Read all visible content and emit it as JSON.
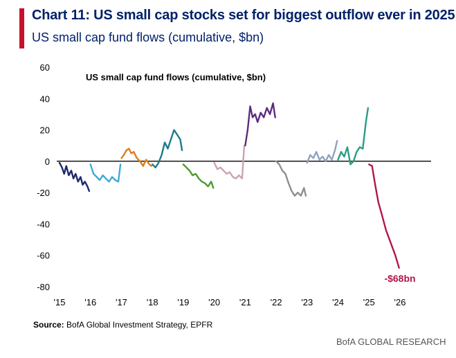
{
  "header": {
    "title": "Chart 11: US small cap stocks set for biggest outflow ever in 2025",
    "subtitle": "US small cap fund flows (cumulative, $bn)"
  },
  "footer": {
    "source_label": "Source:",
    "source_text": " BofA Global Investment Strategy, EPFR",
    "brand": "BofA GLOBAL RESEARCH"
  },
  "colors": {
    "accent": "#C8102E",
    "title": "#012169"
  },
  "chart_data": {
    "type": "line",
    "title": "US small cap fund flows (cumulative, $bn)",
    "xlabel": "",
    "ylabel": "",
    "xlim": [
      2015,
      2026.3
    ],
    "ylim": [
      -80,
      60
    ],
    "y_ticks": [
      60,
      40,
      20,
      0,
      -20,
      -40,
      -60,
      -80
    ],
    "x_ticks": [
      {
        "value": 2015,
        "label": "'15"
      },
      {
        "value": 2016,
        "label": "'16"
      },
      {
        "value": 2017,
        "label": "'17"
      },
      {
        "value": 2018,
        "label": "'18"
      },
      {
        "value": 2019,
        "label": "'19"
      },
      {
        "value": 2020,
        "label": "'20"
      },
      {
        "value": 2021,
        "label": "'21"
      },
      {
        "value": 2022,
        "label": "'22"
      },
      {
        "value": 2023,
        "label": "'23"
      },
      {
        "value": 2024,
        "label": "'24"
      },
      {
        "value": 2025,
        "label": "'25"
      },
      {
        "value": 2026,
        "label": "'26"
      }
    ],
    "grid": false,
    "zero_line": true,
    "annotation": {
      "text": "-$68bn",
      "x": 2026.0,
      "y": -77,
      "color": "#B0174A"
    },
    "series": [
      {
        "name": "2015",
        "color": "#1B2A6B",
        "x": [
          2015.0,
          2015.08,
          2015.15,
          2015.22,
          2015.3,
          2015.38,
          2015.45,
          2015.52,
          2015.6,
          2015.68,
          2015.75,
          2015.82,
          2015.9,
          2015.96
        ],
        "y": [
          -1,
          -4,
          -8,
          -3,
          -9,
          -6,
          -11,
          -8,
          -13,
          -10,
          -15,
          -13,
          -16,
          -19
        ]
      },
      {
        "name": "2016",
        "color": "#3FA9D8",
        "x": [
          2016.0,
          2016.1,
          2016.2,
          2016.3,
          2016.4,
          2016.5,
          2016.6,
          2016.7,
          2016.8,
          2016.9,
          2016.97
        ],
        "y": [
          -2,
          -8,
          -10,
          -12,
          -9,
          -11,
          -13,
          -10,
          -12,
          -13,
          -2
        ]
      },
      {
        "name": "2017",
        "color": "#E07B1A",
        "x": [
          2017.0,
          2017.08,
          2017.16,
          2017.24,
          2017.32,
          2017.4,
          2017.5,
          2017.6,
          2017.7,
          2017.8,
          2017.9,
          2017.97
        ],
        "y": [
          2,
          4,
          7,
          8,
          5,
          6,
          2,
          0,
          -3,
          1,
          -2,
          -3
        ]
      },
      {
        "name": "2018",
        "color": "#1E7A8C",
        "x": [
          2018.0,
          2018.1,
          2018.2,
          2018.3,
          2018.4,
          2018.5,
          2018.6,
          2018.7,
          2018.8,
          2018.9,
          2018.96
        ],
        "y": [
          -2,
          -4,
          -1,
          4,
          12,
          8,
          14,
          20,
          17,
          14,
          7
        ]
      },
      {
        "name": "2019",
        "color": "#4E9A2E",
        "x": [
          2019.0,
          2019.1,
          2019.2,
          2019.3,
          2019.4,
          2019.5,
          2019.6,
          2019.7,
          2019.8,
          2019.9,
          2019.97
        ],
        "y": [
          -2,
          -4,
          -6,
          -9,
          -8,
          -11,
          -13,
          -14,
          -16,
          -13,
          -17
        ]
      },
      {
        "name": "2020",
        "color": "#C9A3B3",
        "x": [
          2020.0,
          2020.1,
          2020.2,
          2020.3,
          2020.4,
          2020.5,
          2020.6,
          2020.7,
          2020.8,
          2020.9,
          2020.97
        ],
        "y": [
          -1,
          -5,
          -4,
          -6,
          -8,
          -7,
          -10,
          -11,
          -9,
          -11,
          10
        ]
      },
      {
        "name": "2021",
        "color": "#5E2A7E",
        "x": [
          2021.0,
          2021.08,
          2021.16,
          2021.24,
          2021.32,
          2021.4,
          2021.5,
          2021.6,
          2021.7,
          2021.8,
          2021.9,
          2021.97
        ],
        "y": [
          10,
          20,
          35,
          28,
          30,
          25,
          31,
          28,
          34,
          30,
          37,
          28
        ]
      },
      {
        "name": "2022",
        "color": "#8E8E8E",
        "x": [
          2022.0,
          2022.1,
          2022.2,
          2022.3,
          2022.4,
          2022.5,
          2022.6,
          2022.7,
          2022.8,
          2022.9,
          2022.96
        ],
        "y": [
          0,
          -2,
          -6,
          -8,
          -14,
          -19,
          -22,
          -20,
          -22,
          -17,
          -22
        ]
      },
      {
        "name": "2023",
        "color": "#8FA2BF",
        "x": [
          2023.0,
          2023.1,
          2023.2,
          2023.3,
          2023.4,
          2023.5,
          2023.6,
          2023.7,
          2023.8,
          2023.9,
          2023.97
        ],
        "y": [
          -1,
          4,
          2,
          6,
          1,
          3,
          0,
          4,
          1,
          7,
          13
        ]
      },
      {
        "name": "2024",
        "color": "#2A9C85",
        "x": [
          2024.0,
          2024.1,
          2024.2,
          2024.3,
          2024.4,
          2024.5,
          2024.6,
          2024.7,
          2024.8,
          2024.9,
          2024.97
        ],
        "y": [
          1,
          6,
          3,
          9,
          -2,
          0,
          6,
          9,
          8,
          25,
          34
        ]
      },
      {
        "name": "2025",
        "color": "#B0174A",
        "x": [
          2025.0,
          2025.1,
          2025.2,
          2025.3,
          2025.4,
          2025.55,
          2025.7,
          2025.85,
          2025.97
        ],
        "y": [
          -2,
          -3,
          -15,
          -26,
          -33,
          -44,
          -52,
          -60,
          -68
        ]
      }
    ]
  }
}
